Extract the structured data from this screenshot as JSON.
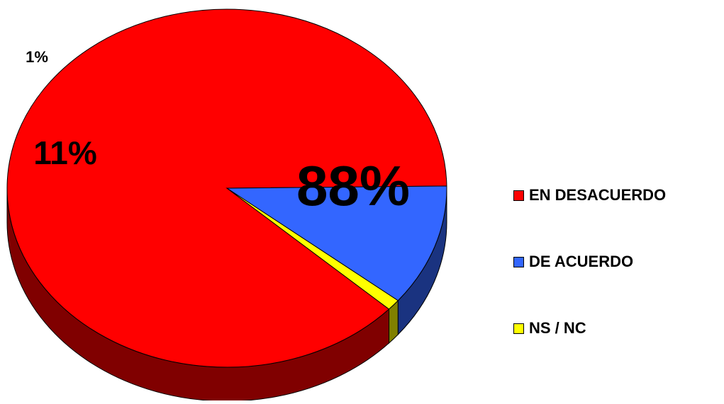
{
  "chart_data": {
    "type": "pie",
    "title": "",
    "slices": [
      {
        "label": "EN DESACUERDO",
        "value": 88,
        "display": "88%",
        "color": "#ff0000",
        "side_color": "#800000"
      },
      {
        "label": "DE ACUERDO",
        "value": 11,
        "display": "11%",
        "color": "#3366ff",
        "side_color": "#1a3380"
      },
      {
        "label": "NS / NC",
        "value": 1,
        "display": "1%",
        "color": "#ffff00",
        "side_color": "#808000"
      }
    ],
    "three_d": true,
    "legend_position": "right"
  }
}
